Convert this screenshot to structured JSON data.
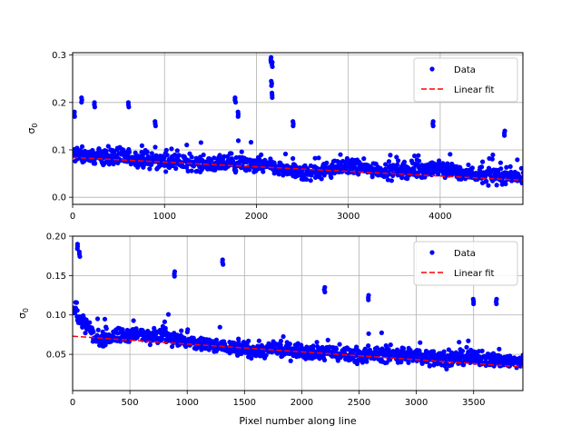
{
  "chart_data": [
    {
      "type": "scatter",
      "xlabel": "",
      "ylabel": "σ0",
      "xlim": [
        0,
        4900
      ],
      "ylim": [
        -0.015,
        0.305
      ],
      "xticks": [
        0,
        1000,
        2000,
        3000,
        4000
      ],
      "yticks": [
        0.0,
        0.1,
        0.2,
        0.3
      ],
      "xtick_labels": [
        "0",
        "1000",
        "2000",
        "3000",
        "4000"
      ],
      "ytick_labels": [
        "0.0",
        "0.1",
        "0.2",
        "0.3"
      ],
      "grid": true,
      "legend_position": "top-right",
      "series": [
        {
          "name": "Data",
          "kind": "points",
          "color": "#0000ff",
          "trend": [
            [
              0,
              0.09
            ],
            [
              500,
              0.085
            ],
            [
              1000,
              0.075
            ],
            [
              1500,
              0.07
            ],
            [
              2000,
              0.07
            ],
            [
              2500,
              0.05
            ],
            [
              3000,
              0.065
            ],
            [
              3500,
              0.055
            ],
            [
              4000,
              0.06
            ],
            [
              4500,
              0.045
            ],
            [
              4900,
              0.045
            ]
          ],
          "spikes": [
            [
              20,
              0.18
            ],
            [
              100,
              0.21
            ],
            [
              240,
              0.2
            ],
            [
              610,
              0.2
            ],
            [
              900,
              0.16
            ],
            [
              1770,
              0.21
            ],
            [
              1800,
              0.18
            ],
            [
              2160,
              0.295
            ],
            [
              2170,
              0.285
            ],
            [
              2165,
              0.245
            ],
            [
              2170,
              0.22
            ],
            [
              2400,
              0.16
            ],
            [
              3920,
              0.16
            ],
            [
              4700,
              0.14
            ]
          ]
        },
        {
          "name": "Linear fit",
          "kind": "line",
          "color": "#ff0000",
          "style": "dashed",
          "points": [
            [
              0,
              0.084
            ],
            [
              4900,
              0.036
            ]
          ]
        }
      ]
    },
    {
      "type": "scatter",
      "xlabel": "Pixel number along line",
      "ylabel": "σ0",
      "xlim": [
        0,
        3930
      ],
      "ylim": [
        0.004,
        0.2
      ],
      "xticks": [
        0,
        500,
        1000,
        1500,
        2000,
        2500,
        3000,
        3500
      ],
      "yticks": [
        0.05,
        0.1,
        0.15,
        0.2
      ],
      "xtick_labels": [
        "0",
        "500",
        "1000",
        "1500",
        "2000",
        "2500",
        "3000",
        "3500"
      ],
      "ytick_labels": [
        "0.05",
        "0.10",
        "0.15",
        "0.20"
      ],
      "grid": true,
      "legend_position": "top-right",
      "series": [
        {
          "name": "Data",
          "kind": "points",
          "color": "#0000ff",
          "trend": [
            [
              0,
              0.11
            ],
            [
              100,
              0.09
            ],
            [
              200,
              0.07
            ],
            [
              500,
              0.075
            ],
            [
              800,
              0.075
            ],
            [
              1000,
              0.065
            ],
            [
              1300,
              0.06
            ],
            [
              1600,
              0.055
            ],
            [
              2000,
              0.055
            ],
            [
              2400,
              0.05
            ],
            [
              2800,
              0.05
            ],
            [
              3200,
              0.045
            ],
            [
              3600,
              0.045
            ],
            [
              3930,
              0.04
            ]
          ],
          "spikes": [
            [
              40,
              0.19
            ],
            [
              60,
              0.18
            ],
            [
              890,
              0.155
            ],
            [
              1310,
              0.17
            ],
            [
              2200,
              0.135
            ],
            [
              2580,
              0.125
            ],
            [
              3500,
              0.12
            ],
            [
              3700,
              0.12
            ]
          ]
        },
        {
          "name": "Linear fit",
          "kind": "line",
          "color": "#ff0000",
          "style": "dashed",
          "points": [
            [
              0,
              0.073
            ],
            [
              3930,
              0.034
            ]
          ]
        }
      ]
    }
  ]
}
